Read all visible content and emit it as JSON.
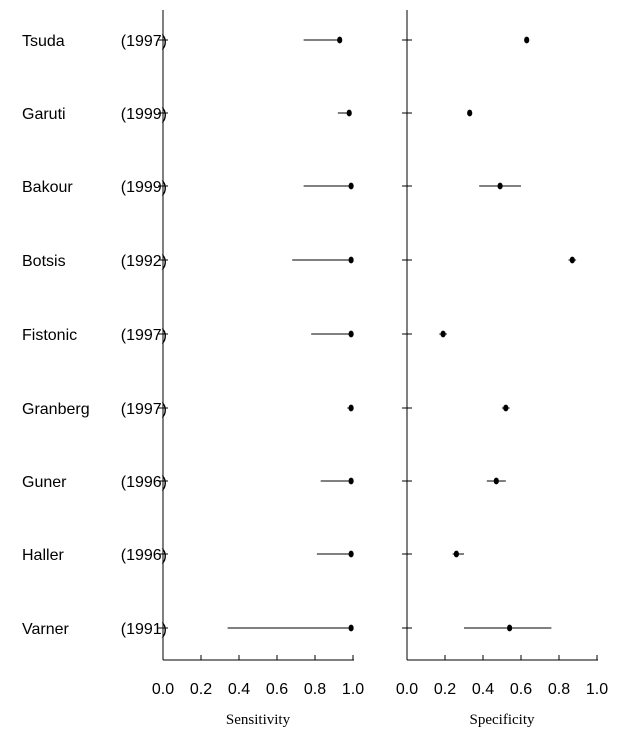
{
  "chart_data": {
    "type": "forest",
    "studies": [
      {
        "name": "Tsuda",
        "year": "(1997)"
      },
      {
        "name": "Garuti",
        "year": "(1999)"
      },
      {
        "name": "Bakour",
        "year": "(1999)"
      },
      {
        "name": "Botsis",
        "year": "(1992)"
      },
      {
        "name": "Fistonic",
        "year": "(1997)"
      },
      {
        "name": "Granberg",
        "year": "(1997)"
      },
      {
        "name": "Guner",
        "year": "(1996)"
      },
      {
        "name": "Haller",
        "year": "(1996)"
      },
      {
        "name": "Varner",
        "year": "(1991)"
      }
    ],
    "panels": [
      {
        "xlabel": "Sensitivity",
        "xlim": [
          0.0,
          1.0
        ],
        "ticks": [
          "0.0",
          "0.2",
          "0.4",
          "0.6",
          "0.8",
          "1.0"
        ],
        "estimates": [
          0.93,
          0.98,
          0.99,
          0.99,
          0.99,
          0.99,
          0.99,
          0.99,
          0.99
        ],
        "lower": [
          0.74,
          0.92,
          0.74,
          0.68,
          0.78,
          0.97,
          0.83,
          0.81,
          0.34
        ],
        "upper": [
          0.94,
          0.99,
          0.99,
          0.99,
          0.99,
          0.99,
          0.99,
          0.99,
          0.99
        ]
      },
      {
        "xlabel": "Specificity",
        "xlim": [
          0.0,
          1.0
        ],
        "ticks": [
          "0.0",
          "0.2",
          "0.4",
          "0.6",
          "0.8",
          "1.0"
        ],
        "estimates": [
          0.63,
          0.33,
          0.49,
          0.87,
          0.19,
          0.52,
          0.47,
          0.26,
          0.54
        ],
        "lower": [
          0.62,
          0.32,
          0.38,
          0.85,
          0.17,
          0.5,
          0.42,
          0.24,
          0.3
        ],
        "upper": [
          0.64,
          0.34,
          0.6,
          0.89,
          0.21,
          0.54,
          0.52,
          0.3,
          0.76
        ]
      }
    ]
  }
}
